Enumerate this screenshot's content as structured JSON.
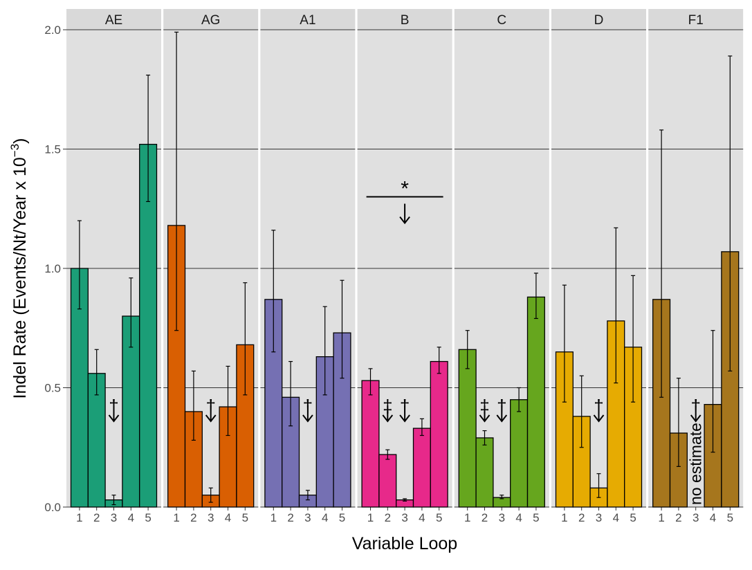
{
  "chart_data": {
    "type": "bar",
    "layout": "faceted",
    "xlabel": "Variable Loop",
    "ylabel_main": "Indel Rate (Events/Nt/Year x 10",
    "ylabel_sup": "−3",
    "ylabel_close": ")",
    "ylim": [
      0,
      2.0
    ],
    "y_ticks": [
      "0.0",
      "0.5",
      "1.0",
      "1.5",
      "2.0"
    ],
    "categories": [
      "1",
      "2",
      "3",
      "4",
      "5"
    ],
    "grid": true,
    "legend": "none",
    "facets": [
      {
        "name": "AE",
        "color": "#1b9e77",
        "values": [
          1.0,
          0.56,
          0.03,
          0.8,
          1.52
        ],
        "err_low": [
          0.83,
          0.47,
          0.01,
          0.67,
          1.28
        ],
        "err_high": [
          1.2,
          0.66,
          0.05,
          0.96,
          1.81
        ],
        "annotations": [
          {
            "loop": "3",
            "symbol": "†",
            "arrow": true
          }
        ]
      },
      {
        "name": "AG",
        "color": "#d95f02",
        "values": [
          1.18,
          0.4,
          0.05,
          0.42,
          0.68
        ],
        "err_low": [
          0.74,
          0.28,
          0.02,
          0.3,
          0.47
        ],
        "err_high": [
          1.99,
          0.57,
          0.08,
          0.59,
          0.94
        ],
        "annotations": [
          {
            "loop": "3",
            "symbol": "†",
            "arrow": true
          }
        ]
      },
      {
        "name": "A1",
        "color": "#7570b3",
        "values": [
          0.87,
          0.46,
          0.05,
          0.63,
          0.73
        ],
        "err_low": [
          0.65,
          0.34,
          0.03,
          0.47,
          0.54
        ],
        "err_high": [
          1.16,
          0.61,
          0.07,
          0.84,
          0.95
        ],
        "annotations": [
          {
            "loop": "3",
            "symbol": "†",
            "arrow": true
          }
        ]
      },
      {
        "name": "B",
        "color": "#e7298a",
        "values": [
          0.53,
          0.22,
          0.03,
          0.33,
          0.61
        ],
        "err_low": [
          0.47,
          0.2,
          0.025,
          0.3,
          0.56
        ],
        "err_high": [
          0.58,
          0.24,
          0.035,
          0.37,
          0.67
        ],
        "annotations": [
          {
            "loop": "2",
            "symbol": "‡",
            "arrow": true
          },
          {
            "loop": "3",
            "symbol": "†",
            "arrow": true
          }
        ],
        "significance": {
          "symbol": "*",
          "value": 1.3,
          "arrow": true
        }
      },
      {
        "name": "C",
        "color": "#66a61e",
        "values": [
          0.66,
          0.29,
          0.04,
          0.45,
          0.88
        ],
        "err_low": [
          0.58,
          0.26,
          0.035,
          0.4,
          0.79
        ],
        "err_high": [
          0.74,
          0.32,
          0.05,
          0.5,
          0.98
        ],
        "annotations": [
          {
            "loop": "2",
            "symbol": "‡",
            "arrow": true
          },
          {
            "loop": "3",
            "symbol": "†",
            "arrow": true
          }
        ]
      },
      {
        "name": "D",
        "color": "#e6ab02",
        "values": [
          0.65,
          0.38,
          0.08,
          0.78,
          0.67
        ],
        "err_low": [
          0.44,
          0.25,
          0.04,
          0.52,
          0.44
        ],
        "err_high": [
          0.93,
          0.55,
          0.14,
          1.17,
          0.97
        ],
        "annotations": [
          {
            "loop": "3",
            "symbol": "†",
            "arrow": true
          }
        ]
      },
      {
        "name": "F1",
        "color": "#a6761d",
        "values": [
          0.87,
          0.31,
          null,
          0.43,
          1.07
        ],
        "err_low": [
          0.46,
          0.17,
          null,
          0.23,
          0.57
        ],
        "err_high": [
          1.58,
          0.54,
          null,
          0.74,
          1.89
        ],
        "annotations": [
          {
            "loop": "3",
            "symbol": "†",
            "arrow": true
          }
        ],
        "note": "no estimate"
      }
    ]
  }
}
